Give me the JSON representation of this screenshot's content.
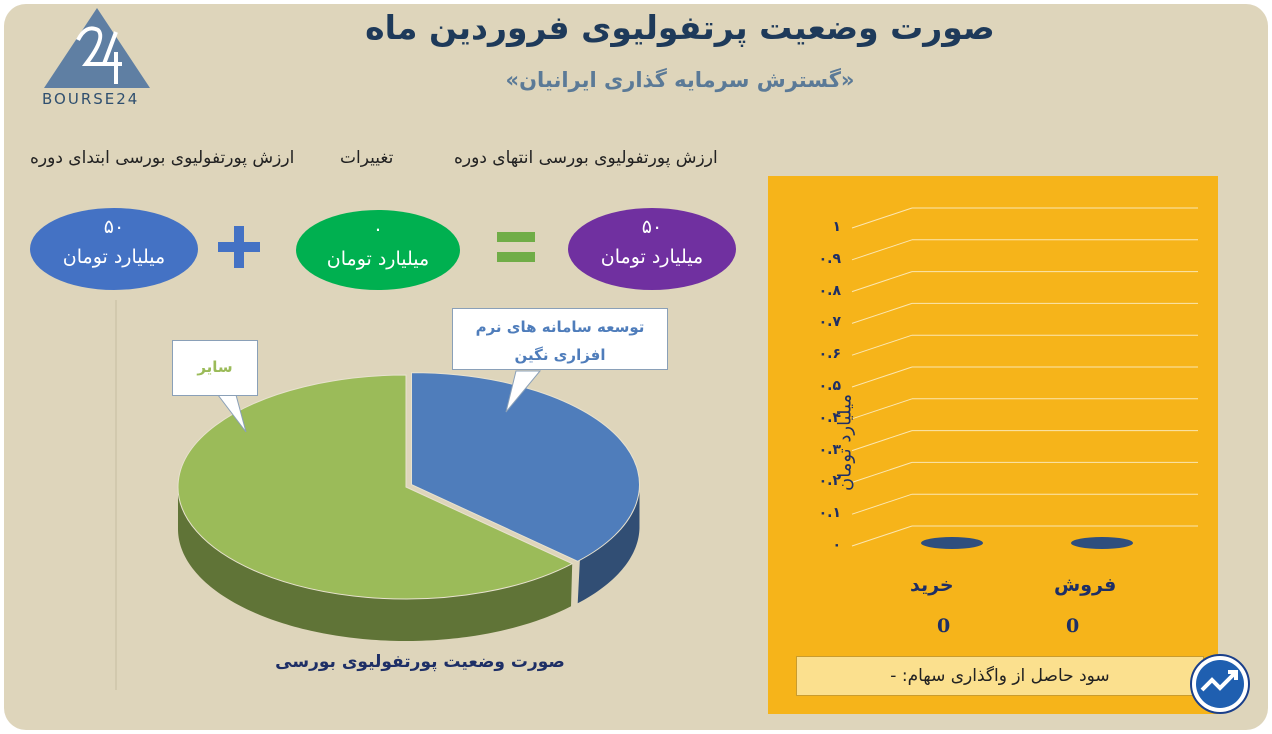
{
  "header": {
    "title": "صورت وضعیت پرتفولیوی فروردین ماه",
    "subtitle": "«گسترش سرمایه گذاری ایرانیان»",
    "logo_text": "BOURSE24"
  },
  "summary": {
    "start_label": "ارزش پورتفولیوی بورسی ابتدای دوره",
    "change_label": "تغییرات",
    "end_label": "ارزش پورتفولیوی بورسی انتهای دوره",
    "start_value": "۵۰",
    "change_value": "۰",
    "end_value": "۵۰",
    "unit": "میلیارد تومان",
    "colors": {
      "start": "#4472c4",
      "change": "#00b050",
      "end": "#7030a0",
      "operator": "#4472c4",
      "equals": "#70ad47"
    }
  },
  "chart_data": [
    {
      "type": "pie",
      "title": "صورت وضعیت پورتفولیوی بورسی",
      "slices": [
        {
          "label": "توسعه سامانه های نرم افزاری نگین",
          "value": 37,
          "color": "#4f7dbb"
        },
        {
          "label": "سایر",
          "value": 63,
          "color": "#9bbb59"
        }
      ]
    },
    {
      "type": "bar",
      "categories": [
        "خرید",
        "فروش"
      ],
      "values": [
        0,
        0
      ],
      "value_labels": [
        "0",
        "0"
      ],
      "ylabel": "میلیارد تومان",
      "ylim": [
        0,
        1
      ],
      "yticks": [
        "۰",
        "۰.۱",
        "۰.۲",
        "۰.۳",
        "۰.۴",
        "۰.۵",
        "۰.۶",
        "۰.۷",
        "۰.۸",
        "۰.۹",
        "۱"
      ],
      "grid": true,
      "bar_color": "#2e4e7e",
      "background": "#f6b41a"
    }
  ],
  "footer": {
    "profit_label": "سود حاصل از واگذاری سهام: -"
  }
}
